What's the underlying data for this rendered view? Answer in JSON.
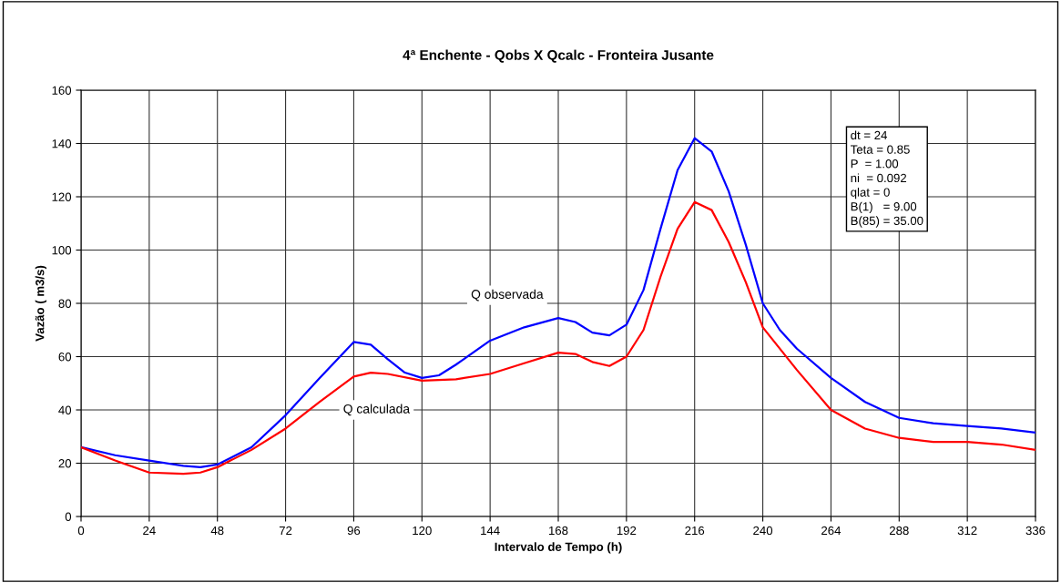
{
  "chart_data": {
    "type": "line",
    "title": "4ª Enchente - Qobs X Qcalc - Fronteira Jusante",
    "xlabel": "Intervalo de Tempo (h)",
    "ylabel": "Vazão ( m3/s)",
    "xlim": [
      0,
      336
    ],
    "xticks": [
      0,
      24,
      48,
      72,
      96,
      120,
      144,
      168,
      192,
      216,
      240,
      264,
      288,
      312,
      336
    ],
    "ylim": [
      0,
      160
    ],
    "yticks": [
      0,
      20,
      40,
      60,
      80,
      100,
      120,
      140,
      160
    ],
    "grid": true,
    "marker": "none",
    "line_style": "solid",
    "annotations": [
      "dt = 24",
      "Teta = 0.85",
      "P  = 1.00",
      "ni  = 0.092",
      "qlat = 0",
      "B(1)   = 9.00",
      "B(85) = 35.00"
    ],
    "series": [
      {
        "name": "Q observada",
        "color": "#0000ff",
        "x": [
          0,
          12,
          24,
          36,
          42,
          48,
          60,
          72,
          84,
          96,
          102,
          108,
          114,
          120,
          126,
          132,
          144,
          156,
          168,
          174,
          180,
          186,
          192,
          198,
          204,
          210,
          216,
          222,
          228,
          234,
          240,
          246,
          252,
          264,
          276,
          288,
          300,
          312,
          324,
          336
        ],
        "values": [
          26,
          23,
          21,
          19,
          18.5,
          19.5,
          26,
          38,
          52,
          65.5,
          64.5,
          59,
          54,
          52,
          53,
          57,
          66,
          71,
          74.5,
          73,
          69,
          68,
          72,
          85,
          108,
          130,
          142,
          137,
          122,
          102,
          80,
          70,
          63,
          52,
          43,
          37,
          35,
          34,
          33,
          31.5
        ]
      },
      {
        "name": "Q calculada",
        "color": "#ff0000",
        "x": [
          0,
          12,
          24,
          36,
          42,
          48,
          60,
          72,
          84,
          96,
          102,
          108,
          120,
          132,
          144,
          156,
          168,
          174,
          180,
          186,
          192,
          198,
          204,
          210,
          216,
          222,
          228,
          234,
          240,
          252,
          264,
          276,
          288,
          300,
          312,
          324,
          336
        ],
        "values": [
          26,
          21,
          16.5,
          16,
          16.5,
          18.5,
          25,
          33,
          43,
          52.5,
          54,
          53.5,
          51,
          51.5,
          53.5,
          57.5,
          61.5,
          61,
          58,
          56.5,
          60,
          70,
          90,
          108,
          118,
          115,
          103,
          88,
          71,
          55,
          40,
          33,
          29.5,
          28,
          28,
          27,
          25
        ]
      }
    ]
  }
}
